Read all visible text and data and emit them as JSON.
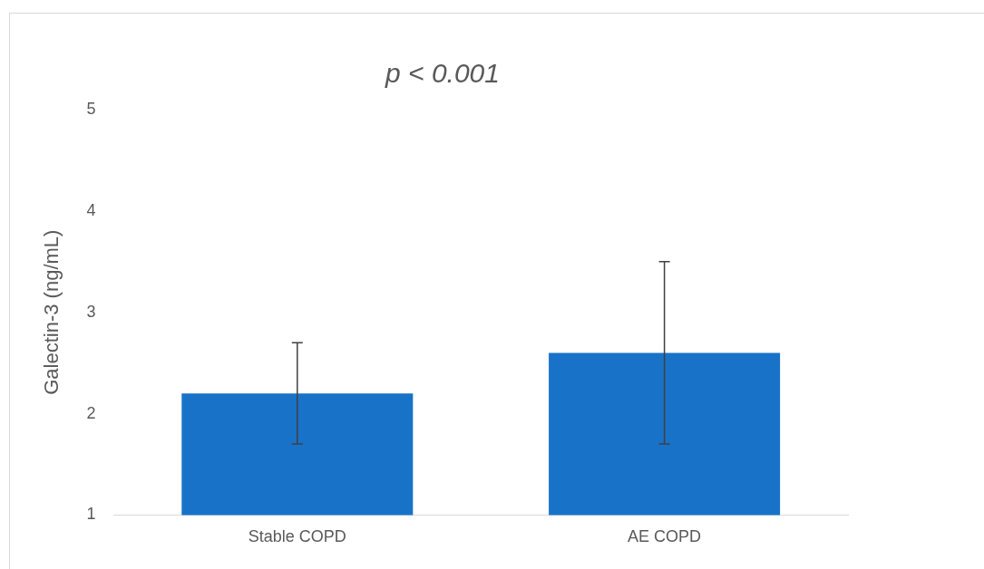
{
  "chart_data": {
    "type": "bar",
    "title": "p < 0.001",
    "ylabel": "Galectin-3 (ng/mL)",
    "categories": [
      "Stable COPD",
      "AE COPD"
    ],
    "values": [
      2.2,
      2.6
    ],
    "errors": [
      0.5,
      0.9
    ],
    "color": "#1872c8",
    "ylim": [
      1,
      5
    ],
    "yticks": [
      1,
      2,
      3,
      4,
      5
    ],
    "grid": false,
    "legend": false
  }
}
